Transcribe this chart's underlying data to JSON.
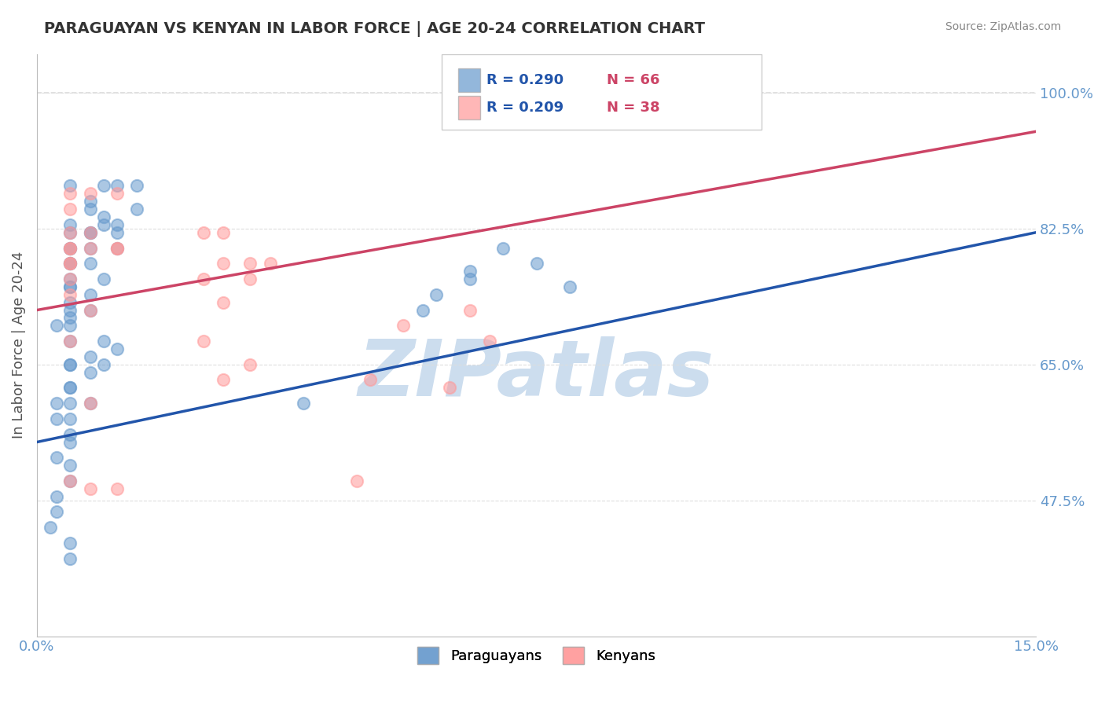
{
  "title": "PARAGUAYAN VS KENYAN IN LABOR FORCE | AGE 20-24 CORRELATION CHART",
  "source_text": "Source: ZipAtlas.com",
  "xlabel": "",
  "ylabel": "In Labor Force | Age 20-24",
  "xlim": [
    0.0,
    0.15
  ],
  "ylim": [
    0.3,
    1.05
  ],
  "xtick_labels": [
    "0.0%",
    "15.0%"
  ],
  "xtick_positions": [
    0.0,
    0.15
  ],
  "ytick_labels": [
    "47.5%",
    "65.0%",
    "82.5%",
    "100.0%"
  ],
  "ytick_positions": [
    0.475,
    0.65,
    0.825,
    1.0
  ],
  "blue_R": 0.29,
  "blue_N": 66,
  "pink_R": 0.209,
  "pink_N": 38,
  "blue_color": "#6699CC",
  "pink_color": "#FF9999",
  "blue_trend_color": "#2255AA",
  "pink_trend_color": "#CC4466",
  "dot_size": 120,
  "dot_alpha": 0.55,
  "watermark_text": "ZIPatlas",
  "watermark_color": "#CCDDEE",
  "legend_paraguayans": "Paraguayans",
  "legend_kenyans": "Kenyans",
  "blue_scatter_x": [
    0.005,
    0.01,
    0.005,
    0.008,
    0.012,
    0.015,
    0.005,
    0.008,
    0.01,
    0.012,
    0.015,
    0.008,
    0.005,
    0.005,
    0.01,
    0.008,
    0.012,
    0.005,
    0.005,
    0.008,
    0.005,
    0.008,
    0.012,
    0.005,
    0.005,
    0.005,
    0.005,
    0.008,
    0.01,
    0.005,
    0.003,
    0.005,
    0.008,
    0.005,
    0.005,
    0.01,
    0.005,
    0.005,
    0.008,
    0.008,
    0.01,
    0.012,
    0.005,
    0.005,
    0.005,
    0.003,
    0.003,
    0.005,
    0.008,
    0.005,
    0.003,
    0.005,
    0.005,
    0.003,
    0.003,
    0.002,
    0.005,
    0.005,
    0.065,
    0.07,
    0.075,
    0.08,
    0.058,
    0.06,
    0.065,
    0.04
  ],
  "blue_scatter_y": [
    0.88,
    0.88,
    0.83,
    0.86,
    0.88,
    0.88,
    0.78,
    0.82,
    0.84,
    0.83,
    0.85,
    0.8,
    0.8,
    0.82,
    0.83,
    0.85,
    0.82,
    0.78,
    0.8,
    0.82,
    0.75,
    0.78,
    0.8,
    0.75,
    0.76,
    0.73,
    0.71,
    0.74,
    0.76,
    0.72,
    0.7,
    0.7,
    0.72,
    0.68,
    0.65,
    0.68,
    0.65,
    0.62,
    0.64,
    0.66,
    0.65,
    0.67,
    0.6,
    0.58,
    0.62,
    0.6,
    0.58,
    0.56,
    0.6,
    0.55,
    0.53,
    0.52,
    0.5,
    0.48,
    0.46,
    0.44,
    0.42,
    0.4,
    0.77,
    0.8,
    0.78,
    0.75,
    0.72,
    0.74,
    0.76,
    0.6
  ],
  "pink_scatter_x": [
    0.005,
    0.008,
    0.012,
    0.005,
    0.025,
    0.028,
    0.005,
    0.008,
    0.012,
    0.005,
    0.005,
    0.008,
    0.012,
    0.028,
    0.032,
    0.005,
    0.005,
    0.035,
    0.005,
    0.025,
    0.032,
    0.005,
    0.008,
    0.028,
    0.065,
    0.055,
    0.068,
    0.005,
    0.025,
    0.032,
    0.028,
    0.05,
    0.062,
    0.008,
    0.048,
    0.005,
    0.008,
    0.012
  ],
  "pink_scatter_y": [
    0.87,
    0.87,
    0.87,
    0.85,
    0.82,
    0.82,
    0.82,
    0.82,
    0.8,
    0.8,
    0.8,
    0.8,
    0.8,
    0.78,
    0.78,
    0.78,
    0.78,
    0.78,
    0.76,
    0.76,
    0.76,
    0.74,
    0.72,
    0.73,
    0.72,
    0.7,
    0.68,
    0.68,
    0.68,
    0.65,
    0.63,
    0.63,
    0.62,
    0.6,
    0.5,
    0.5,
    0.49,
    0.49
  ],
  "blue_trend_x": [
    0.0,
    0.15
  ],
  "blue_trend_y": [
    0.55,
    0.82
  ],
  "pink_trend_x": [
    0.0,
    0.15
  ],
  "pink_trend_y": [
    0.72,
    0.95
  ],
  "dashed_line_y": 1.0,
  "background_color": "#FFFFFF",
  "grid_color": "#DDDDDD",
  "title_color": "#333333",
  "axis_label_color": "#555555",
  "tick_color": "#6699CC",
  "legend_R_color": "#2255AA",
  "legend_N_color": "#CC4466"
}
